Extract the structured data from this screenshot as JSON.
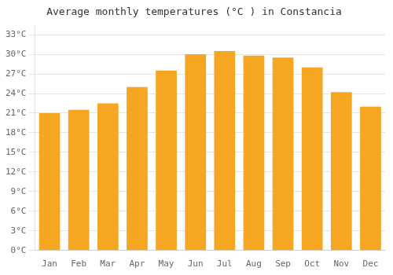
{
  "chart_data": {
    "type": "bar",
    "title": "Average monthly temperatures (°C ) in Constancia",
    "categories": [
      "Jan",
      "Feb",
      "Mar",
      "Apr",
      "May",
      "Jun",
      "Jul",
      "Aug",
      "Sep",
      "Oct",
      "Nov",
      "Dec"
    ],
    "values": [
      21,
      21.5,
      22.5,
      25,
      27.5,
      30,
      30.5,
      29.8,
      29.5,
      28,
      24.2,
      22
    ],
    "color": "#F5A623",
    "ylim": [
      0,
      34.5
    ],
    "yticks": [
      {
        "value": 0,
        "label": "0°C"
      },
      {
        "value": 3,
        "label": "3°C"
      },
      {
        "value": 6,
        "label": "6°C"
      },
      {
        "value": 9,
        "label": "9°C"
      },
      {
        "value": 12,
        "label": "12°C"
      },
      {
        "value": 15,
        "label": "15°C"
      },
      {
        "value": 18,
        "label": "18°C"
      },
      {
        "value": 21,
        "label": "21°C"
      },
      {
        "value": 24,
        "label": "24°C"
      },
      {
        "value": 27,
        "label": "27°C"
      },
      {
        "value": 30,
        "label": "30°C"
      },
      {
        "value": 33,
        "label": "33°C"
      }
    ],
    "grid": true
  }
}
